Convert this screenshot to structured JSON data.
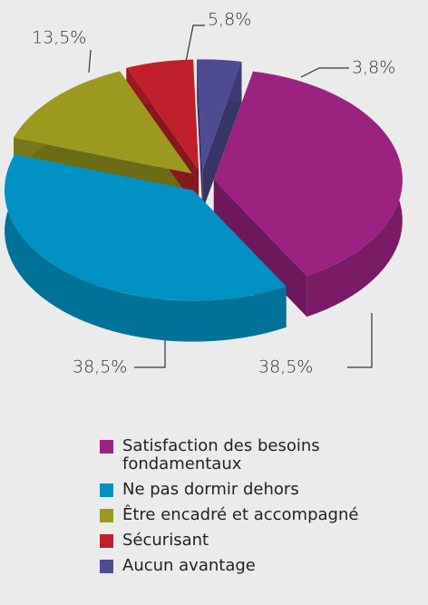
{
  "chart_data": {
    "type": "pie",
    "categories": [
      "Satisfaction des besoins fondamentaux",
      "Ne pas dormir dehors",
      "Être encadré et accompagné",
      "Sécurisant",
      "Aucun avantage"
    ],
    "values": [
      38.5,
      38.5,
      13.5,
      5.8,
      3.8
    ],
    "value_labels": [
      "38,5%",
      "38,5%",
      "13,5%",
      "5,8%",
      "3,8%"
    ],
    "colors": [
      "#9c2282",
      "#0092c2",
      "#9b9a1f",
      "#c1202b",
      "#4f4b90"
    ]
  }
}
